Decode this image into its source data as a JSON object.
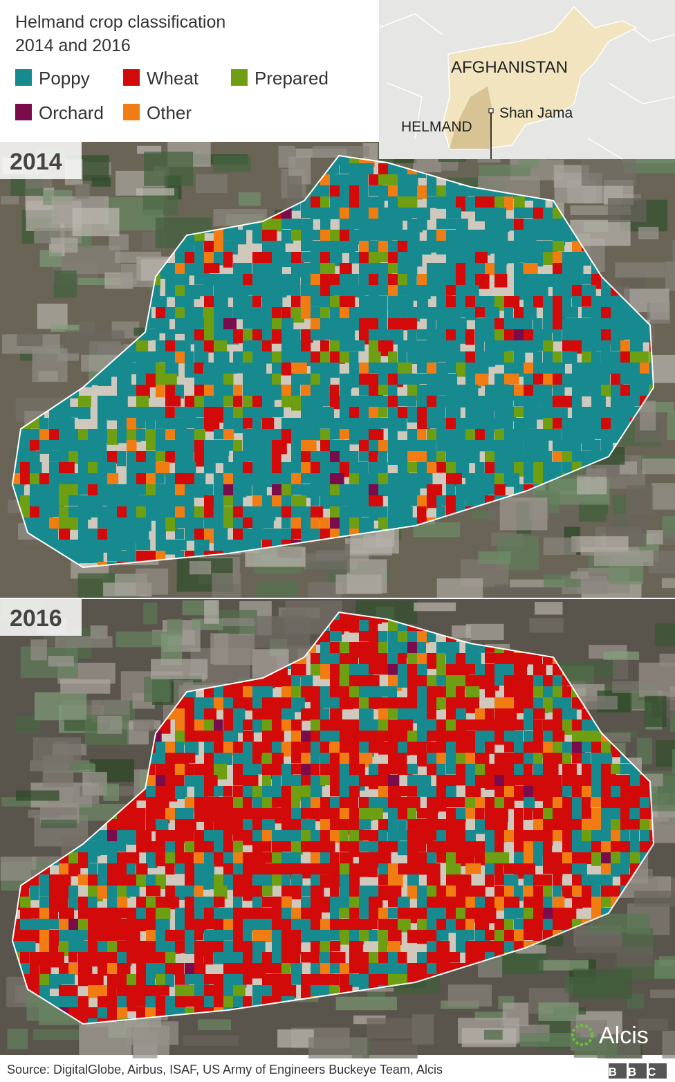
{
  "header": {
    "title": "Helmand crop classification",
    "subtitle": "2014 and 2016"
  },
  "legend": [
    {
      "label": "Poppy",
      "color": "#168a8e"
    },
    {
      "label": "Wheat",
      "color": "#d20a0a"
    },
    {
      "label": "Prepared",
      "color": "#6e9e12"
    },
    {
      "label": "Orchard",
      "color": "#7a0c4c"
    },
    {
      "label": "Other",
      "color": "#f07c12"
    }
  ],
  "inset": {
    "country": "AFGHANISTAN",
    "province": "HELMAND",
    "place": "Shan Jama"
  },
  "panels": [
    {
      "label": "2014"
    },
    {
      "label": "2016"
    }
  ],
  "credit": "Alcis",
  "footer": {
    "source": "Source: DigitalGlobe, Airbus, ISAF, US Army of Engineers Buckeye Team, Alcis",
    "brand": "BBC"
  }
}
